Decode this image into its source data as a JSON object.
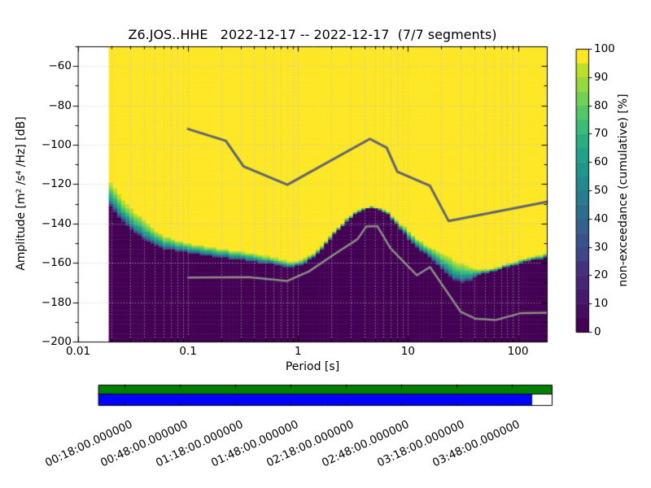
{
  "chart_data": {
    "type": "heatmap",
    "title": "Z6.JOS..HHE   2022-12-17 -- 2022-12-17  (7/7 segments)",
    "xlabel": "Period [s]",
    "ylabel": "Amplitude [m² /s⁴ /Hz] [dB]",
    "colorbar_label": "non-exceedance (cumulative) [%]",
    "x_axis": {
      "scale": "log",
      "lim": [
        0.01,
        183
      ],
      "tick_logp": [
        -2,
        -1,
        0,
        1,
        2
      ],
      "tick_labels": [
        "0.01",
        "0.1",
        "1",
        "10",
        "100"
      ]
    },
    "y_axis": {
      "lim": [
        -200,
        -50
      ],
      "ticks": [
        -60,
        -80,
        -100,
        -120,
        -140,
        -160,
        -180,
        -200
      ],
      "tick_labels": [
        "−60",
        "−80",
        "−100",
        "−120",
        "−140",
        "−160",
        "−180",
        "−200"
      ]
    },
    "colorbar": {
      "lim": [
        0,
        100
      ],
      "ticks": [
        0,
        10,
        20,
        30,
        40,
        50,
        60,
        70,
        80,
        90,
        100
      ],
      "n_segments": 20,
      "colors": [
        "#440154",
        "#470d60",
        "#48196b",
        "#482575",
        "#45317e",
        "#3f4587",
        "#39528b",
        "#33608d",
        "#2d6e8e",
        "#287c8e",
        "#23898e",
        "#1f968b",
        "#1fa287",
        "#28ae80",
        "#3bbb75",
        "#54c568",
        "#73d056",
        "#95d840",
        "#bddf26",
        "#fde725"
      ]
    },
    "grid_color": "#bdbdca",
    "no_data_period_max": 0.019,
    "nonexceedance_boundary": [
      [
        -1.72,
        -130,
        -117
      ],
      [
        -1.6,
        -139,
        -126
      ],
      [
        -1.49,
        -144,
        -133
      ],
      [
        -1.38,
        -149,
        -138
      ],
      [
        -1.23,
        -152.5,
        -145.5
      ],
      [
        -1.01,
        -154.5,
        -149
      ],
      [
        -0.79,
        -156.5,
        -151
      ],
      [
        -0.57,
        -158,
        -153
      ],
      [
        -0.35,
        -159.5,
        -155
      ],
      [
        -0.16,
        -161,
        -157.5
      ],
      [
        -0.07,
        -162.5,
        -159.5
      ],
      [
        0.03,
        -160.5,
        -158
      ],
      [
        0.14,
        -157.5,
        -155
      ],
      [
        0.25,
        -150.5,
        -149
      ],
      [
        0.36,
        -143.5,
        -142
      ],
      [
        0.47,
        -137,
        -136
      ],
      [
        0.58,
        -133,
        -132
      ],
      [
        0.66,
        -132,
        -131.3
      ],
      [
        0.77,
        -133,
        -132
      ],
      [
        0.84,
        -136.5,
        -135
      ],
      [
        0.91,
        -141.5,
        -139
      ],
      [
        0.99,
        -146.5,
        -142
      ],
      [
        1.06,
        -150.5,
        -145.5
      ],
      [
        1.14,
        -154.5,
        -149
      ],
      [
        1.21,
        -158,
        -151
      ],
      [
        1.28,
        -162,
        -153.5
      ],
      [
        1.36,
        -166,
        -155.5
      ],
      [
        1.43,
        -169,
        -158
      ],
      [
        1.51,
        -170,
        -159.5
      ],
      [
        1.58,
        -168.5,
        -161
      ],
      [
        1.65,
        -166,
        -163
      ],
      [
        1.73,
        -164.5,
        -163
      ],
      [
        1.84,
        -163,
        -161.5
      ],
      [
        1.95,
        -161,
        -159.5
      ],
      [
        2.06,
        -159.5,
        -158
      ],
      [
        2.17,
        -158,
        -156
      ],
      [
        2.26,
        -157,
        -155
      ]
    ],
    "noise_models": {
      "high_color": "#60656f",
      "low_color": "#898e86",
      "high": [
        [
          -1,
          -92
        ],
        [
          -0.657,
          -98
        ],
        [
          -0.495,
          -111
        ],
        [
          -0.097,
          -120.3
        ],
        [
          0.653,
          -97
        ],
        [
          0.806,
          -101.5
        ],
        [
          0.903,
          -113.7
        ],
        [
          1.199,
          -120.8
        ],
        [
          1.369,
          -138.7
        ],
        [
          2.2625,
          -129
        ]
      ],
      "low": [
        [
          -1,
          -167.5
        ],
        [
          -0.45,
          -167.3
        ],
        [
          -0.097,
          -169.2
        ],
        [
          0.1,
          -164.3
        ],
        [
          0.32,
          -156
        ],
        [
          0.54,
          -148
        ],
        [
          0.62,
          -141.5
        ],
        [
          0.72,
          -141.3
        ],
        [
          0.84,
          -152.5
        ],
        [
          1.08,
          -166.3
        ],
        [
          1.2,
          -162.1
        ],
        [
          1.48,
          -184.9
        ],
        [
          1.61,
          -188.3
        ],
        [
          1.8,
          -189
        ],
        [
          2.03,
          -185.5
        ],
        [
          2.2625,
          -185.3
        ]
      ]
    },
    "timeline": {
      "green_color": "#008000",
      "blue_color": "#0000ff",
      "green_fraction": 1.0,
      "blue_fraction": 0.957,
      "labels": [
        "00:18:00.000000",
        "00:48:00.000000",
        "01:18:00.000000",
        "01:48:00.000000",
        "02:18:00.000000",
        "02:48:00.000000",
        "03:18:00.000000",
        "03:48:00.000000"
      ]
    }
  }
}
